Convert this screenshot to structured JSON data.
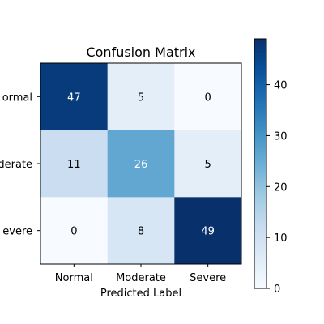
{
  "chart_data": {
    "type": "heatmap",
    "title": "Confusion Matrix",
    "xlabel": "Predicted Label",
    "ylabel": "",
    "x_categories": [
      "Normal",
      "Moderate",
      "Severe"
    ],
    "y_categories": [
      "Normal",
      "Moderate",
      "Severe"
    ],
    "y_tick_labels_visible": [
      "ormal",
      "derate",
      "evere"
    ],
    "values": [
      [
        47,
        5,
        0
      ],
      [
        11,
        26,
        5
      ],
      [
        0,
        8,
        49
      ]
    ],
    "colormap": "Blues",
    "vmin": 0,
    "vmax": 49,
    "colorbar_ticks": [
      "0",
      "10",
      "20",
      "30",
      "40"
    ],
    "colorbar_tick_values": [
      0,
      10,
      20,
      30,
      40
    ],
    "grid": false,
    "colors": {
      "low": "#f7fbff",
      "mid": "#6baed6",
      "high": "#08306b"
    }
  }
}
